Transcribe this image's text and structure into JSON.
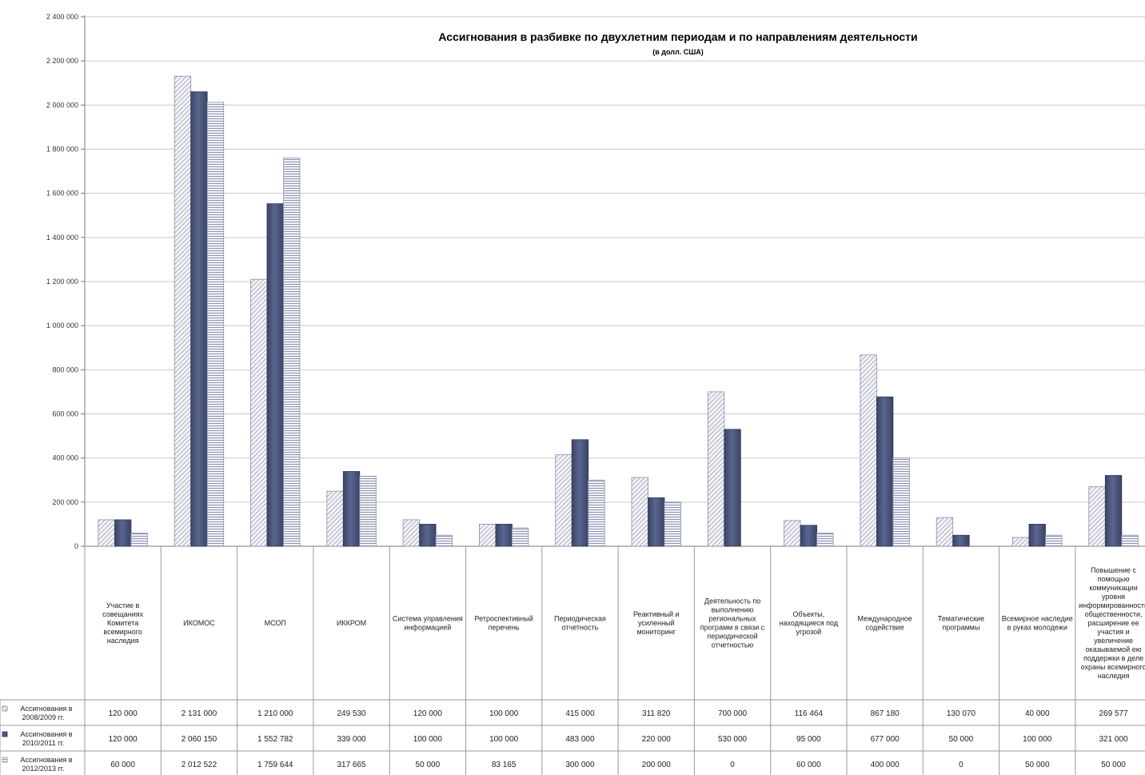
{
  "chart_data": {
    "type": "bar",
    "title": "Ассигнования в разбивке по двухлетним периодам и по направлениям деятельности",
    "subtitle": "(в долл. США)",
    "ylim": [
      0,
      2400000
    ],
    "yticks": [
      "0",
      "200 000",
      "400 000",
      "600 000",
      "800 000",
      "1 000 000",
      "1 200 000",
      "1 400 000",
      "1 600 000",
      "1 800 000",
      "2 000 000",
      "2 200 000",
      "2 400 000"
    ],
    "grid": true,
    "legend": "data-table-rows",
    "categories": [
      "Участие в совещаниях Комитета всемирного наследия",
      "ИКОМОС",
      "МСОП",
      "ИККРОМ",
      "Система управления информацией",
      "Ретроспективный перечень",
      "Периодическая отчетность",
      "Реактивный и усиленный мониторинг",
      "Деятельность по выполнению региональных программ в связи с периодической отчетностью",
      "Объекты, находящиеся под угрозой",
      "Международное содействие",
      "Тематические программы",
      "Всемирное наследие в руках молодежи",
      "Повышение с помощью коммуникации уровня информированности общественности, расширение ее участия и увеличение оказываемой ею поддержки в деле охраны всемирного наследия"
    ],
    "category_lines": [
      [
        "Участие в",
        "совещаниях",
        "Комитета",
        "всемирного",
        "наследия"
      ],
      [
        "ИКОМОС"
      ],
      [
        "МСОП"
      ],
      [
        "ИККРОМ"
      ],
      [
        "Система управления",
        "информацией"
      ],
      [
        "Ретроспективный",
        "перечень"
      ],
      [
        "Периодическая",
        "отчетность"
      ],
      [
        "Реактивный и",
        "усиленный",
        "мониторинг"
      ],
      [
        "Деятельность по",
        "выполнению",
        "региональных",
        "программ в связи с",
        "периодической",
        "отчетностью"
      ],
      [
        "Объекты,",
        "находящиеся под",
        "угрозой"
      ],
      [
        "Международное",
        "содействие"
      ],
      [
        "Тематические",
        "программы"
      ],
      [
        "Всемирное наследие",
        "в руках молодежи"
      ],
      [
        "Повышение с",
        "помощью",
        "коммуникации",
        "уровня",
        "информированности",
        "общественности,",
        "расширение ее",
        "участия и",
        "увеличение",
        "оказываемой ею",
        "поддержки в деле",
        "охраны всемирного",
        "наследия"
      ]
    ],
    "series": [
      {
        "name": "Ассигнования в 2008/2009 гг.",
        "name_lines": [
          "Ассигнования в",
          "2008/2009 гг."
        ],
        "pattern": "diagonal-hatch",
        "values": [
          120000,
          2131000,
          1210000,
          249530,
          120000,
          100000,
          415000,
          311820,
          700000,
          116464,
          867180,
          130070,
          40000,
          269577
        ],
        "labels": [
          "120 000",
          "2 131 000",
          "1 210 000",
          "249 530",
          "120 000",
          "100 000",
          "415 000",
          "311 820",
          "700 000",
          "116 464",
          "867 180",
          "130 070",
          "40 000",
          "269 577"
        ]
      },
      {
        "name": "Ассигнования в 2010/2011 гг.",
        "name_lines": [
          "Ассигнования в",
          "2010/2011 гг."
        ],
        "pattern": "solid",
        "values": [
          120000,
          2060150,
          1552782,
          339000,
          100000,
          100000,
          483000,
          220000,
          530000,
          95000,
          677000,
          50000,
          100000,
          321000
        ],
        "labels": [
          "120 000",
          "2 060 150",
          "1 552 782",
          "339 000",
          "100 000",
          "100 000",
          "483 000",
          "220 000",
          "530 000",
          "95 000",
          "677 000",
          "50 000",
          "100 000",
          "321 000"
        ]
      },
      {
        "name": "Ассигнования в 2012/2013 гг.",
        "name_lines": [
          "Ассигнования в",
          "2012/2013 гг."
        ],
        "pattern": "horizontal-hatch",
        "values": [
          60000,
          2012522,
          1759644,
          317665,
          50000,
          83165,
          300000,
          200000,
          0,
          60000,
          400000,
          0,
          50000,
          50000
        ],
        "labels": [
          "60 000",
          "2 012 522",
          "1 759 644",
          "317 665",
          "50 000",
          "83 165",
          "300 000",
          "200 000",
          "0",
          "60 000",
          "400 000",
          "0",
          "50 000",
          "50 000"
        ]
      }
    ]
  },
  "colors": {
    "series1_stroke": "#8a8ea6",
    "series2_fill": "#4a5478",
    "series3_stroke": "#8c93b0",
    "grid": "#c8c8c8",
    "axis": "#7a7a7a"
  }
}
